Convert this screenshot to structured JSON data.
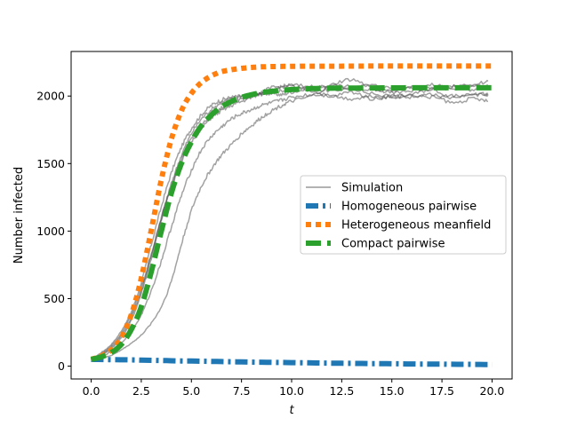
{
  "chart_data": {
    "type": "line",
    "xlabel": "t",
    "ylabel": "Number infected",
    "xlim": [
      -1.0,
      21.0
    ],
    "ylim": [
      -95,
      2330
    ],
    "xticks": [
      "0.0",
      "2.5",
      "5.0",
      "7.5",
      "10.0",
      "12.5",
      "15.0",
      "17.5",
      "20.0"
    ],
    "yticks": [
      "0",
      "500",
      "1000",
      "1500",
      "2000"
    ],
    "grid": false,
    "legend_position": "center-right",
    "legend": [
      {
        "label": "Simulation",
        "style": "simulation"
      },
      {
        "label": "Homogeneous pairwise",
        "style": "homogeneous"
      },
      {
        "label": "Heterogeneous meanfield",
        "style": "heterogeneous"
      },
      {
        "label": "Compact pairwise",
        "style": "compact"
      }
    ],
    "colors": {
      "simulation": "#555555",
      "homogeneous": "#1f77b4",
      "heterogeneous": "#ff7f0e",
      "compact": "#2ca02c"
    },
    "model_series": [
      {
        "name": "Homogeneous pairwise",
        "style": "homogeneous",
        "x": [
          0,
          2,
          4,
          6,
          8,
          10,
          12,
          14,
          16,
          18,
          20
        ],
        "y": [
          50,
          46,
          40,
          35,
          30,
          26,
          22,
          19,
          16,
          14,
          12
        ]
      },
      {
        "name": "Heterogeneous meanfield",
        "style": "heterogeneous",
        "x": [
          0,
          0.5,
          1,
          1.5,
          2,
          2.5,
          3,
          3.5,
          4,
          4.5,
          5,
          5.5,
          6,
          6.5,
          7,
          7.5,
          8,
          8.5,
          9,
          10,
          11,
          12,
          14,
          16,
          18,
          20
        ],
        "y": [
          50,
          75,
          120,
          210,
          380,
          650,
          1010,
          1380,
          1680,
          1890,
          2020,
          2100,
          2150,
          2180,
          2195,
          2205,
          2212,
          2216,
          2218,
          2220,
          2221,
          2221,
          2222,
          2222,
          2222,
          2222
        ]
      },
      {
        "name": "Compact pairwise",
        "style": "compact",
        "x": [
          0,
          0.5,
          1,
          1.5,
          2,
          2.5,
          3,
          3.5,
          4,
          4.5,
          5,
          5.5,
          6,
          6.5,
          7,
          7.5,
          8,
          8.5,
          9,
          10,
          11,
          12,
          14,
          16,
          18,
          20
        ],
        "y": [
          50,
          68,
          100,
          160,
          270,
          440,
          700,
          1000,
          1280,
          1500,
          1660,
          1780,
          1860,
          1920,
          1960,
          1990,
          2010,
          2025,
          2035,
          2048,
          2055,
          2058,
          2060,
          2061,
          2061,
          2061
        ]
      }
    ],
    "simulation_runs": [
      {
        "style": "simulation",
        "x": [
          0,
          0.5,
          1,
          1.5,
          2,
          2.5,
          3,
          3.5,
          4,
          4.5,
          5,
          5.5,
          6,
          6.5,
          7,
          7.5,
          8,
          8.5,
          9,
          9.5,
          10,
          11,
          12,
          13,
          14,
          15,
          16,
          17,
          18,
          19,
          19.8
        ],
        "y": [
          50,
          100,
          160,
          260,
          400,
          620,
          900,
          1180,
          1430,
          1620,
          1760,
          1860,
          1930,
          1970,
          1990,
          2000,
          2010,
          2015,
          2020,
          2010,
          2030,
          2050,
          2040,
          2060,
          2050,
          2040,
          2070,
          2050,
          2060,
          2050,
          2080
        ]
      },
      {
        "style": "simulation",
        "x": [
          0,
          0.5,
          1,
          1.5,
          2,
          2.5,
          3,
          3.5,
          4,
          4.5,
          5,
          5.5,
          6,
          6.5,
          7,
          7.5,
          8,
          8.5,
          9,
          9.5,
          10,
          11,
          12,
          13,
          14,
          15,
          16,
          17,
          18,
          19,
          19.8
        ],
        "y": [
          50,
          80,
          130,
          210,
          340,
          540,
          800,
          1090,
          1350,
          1560,
          1720,
          1830,
          1900,
          1950,
          1980,
          2000,
          2010,
          2020,
          2030,
          2040,
          2050,
          2060,
          2080,
          2070,
          2080,
          2060,
          2070,
          2080,
          2070,
          2080,
          2060
        ]
      },
      {
        "style": "simulation",
        "x": [
          0,
          0.5,
          1,
          1.5,
          2,
          2.5,
          3,
          3.5,
          4,
          4.5,
          5,
          5.5,
          6,
          6.5,
          7,
          7.5,
          8,
          8.5,
          9,
          9.5,
          10,
          11,
          12,
          13,
          14,
          15,
          16,
          17,
          18,
          19,
          19.8
        ],
        "y": [
          50,
          90,
          150,
          240,
          380,
          580,
          830,
          1100,
          1340,
          1530,
          1690,
          1790,
          1860,
          1910,
          1950,
          1980,
          2000,
          2030,
          2060,
          2070,
          2080,
          2070,
          2060,
          2050,
          2020,
          2000,
          2010,
          2050,
          1990,
          2020,
          2010
        ]
      },
      {
        "style": "simulation",
        "x": [
          0,
          0.5,
          1,
          1.5,
          2,
          2.5,
          3,
          3.5,
          4,
          4.5,
          5,
          5.5,
          6,
          6.5,
          7,
          7.5,
          8,
          8.5,
          9,
          9.5,
          10,
          11,
          12,
          13,
          14,
          15,
          16,
          17,
          18,
          19,
          19.8
        ],
        "y": [
          50,
          85,
          140,
          225,
          360,
          560,
          820,
          1090,
          1320,
          1510,
          1660,
          1760,
          1840,
          1890,
          1930,
          1960,
          1990,
          2020,
          2040,
          2060,
          2070,
          2040,
          2000,
          2030,
          1980,
          2000,
          1990,
          2010,
          1950,
          1980,
          1960
        ]
      },
      {
        "style": "simulation",
        "x": [
          0,
          0.5,
          1,
          1.5,
          2,
          2.5,
          3,
          3.5,
          4,
          4.5,
          5,
          5.5,
          6,
          6.5,
          7,
          7.5,
          8,
          8.5,
          9,
          9.5,
          10,
          11,
          12,
          13,
          14,
          15,
          16,
          17,
          18,
          19,
          19.8
        ],
        "y": [
          50,
          70,
          110,
          170,
          260,
          380,
          560,
          780,
          1030,
          1260,
          1450,
          1600,
          1700,
          1770,
          1830,
          1870,
          1900,
          1930,
          1950,
          1970,
          1990,
          2010,
          2000,
          1980,
          2000,
          1990,
          2010,
          1990,
          2000,
          2010,
          2010
        ]
      },
      {
        "style": "simulation",
        "x": [
          0,
          0.5,
          1,
          1.5,
          2,
          2.5,
          3,
          3.5,
          4,
          4.5,
          5,
          5.5,
          6,
          6.5,
          7,
          7.5,
          8,
          8.5,
          9,
          9.5,
          10,
          11,
          12,
          13,
          14,
          15,
          16,
          17,
          18,
          19,
          19.8
        ],
        "y": [
          50,
          60,
          80,
          120,
          170,
          230,
          320,
          440,
          630,
          900,
          1150,
          1330,
          1460,
          1560,
          1640,
          1720,
          1780,
          1840,
          1890,
          1930,
          1960,
          2000,
          2080,
          2120,
          2060,
          2030,
          2040,
          2060,
          2070,
          2080,
          2110
        ]
      }
    ]
  }
}
